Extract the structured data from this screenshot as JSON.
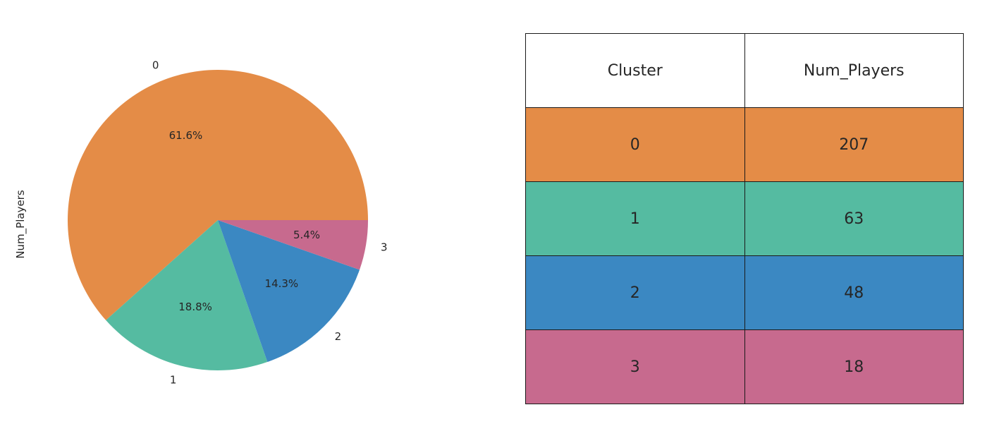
{
  "chart_data": [
    {
      "type": "pie",
      "ylabel": "Num_Players",
      "categories": [
        "0",
        "1",
        "2",
        "3"
      ],
      "values": [
        207,
        63,
        48,
        18
      ],
      "percent_labels": [
        "61.6%",
        "18.8%",
        "14.3%",
        "5.4%"
      ],
      "colors": [
        "#e48c47",
        "#55bba1",
        "#3b88c2",
        "#c76a8e"
      ],
      "start_angle_deg": 0,
      "direction": "counterclockwise"
    },
    {
      "type": "table",
      "columns": [
        "Cluster",
        "Num_Players"
      ],
      "rows": [
        {
          "cluster": "0",
          "num_players": "207",
          "color": "#e48c47"
        },
        {
          "cluster": "1",
          "num_players": "63",
          "color": "#55bba1"
        },
        {
          "cluster": "2",
          "num_players": "48",
          "color": "#3b88c2"
        },
        {
          "cluster": "3",
          "num_players": "18",
          "color": "#c76a8e"
        }
      ]
    }
  ]
}
